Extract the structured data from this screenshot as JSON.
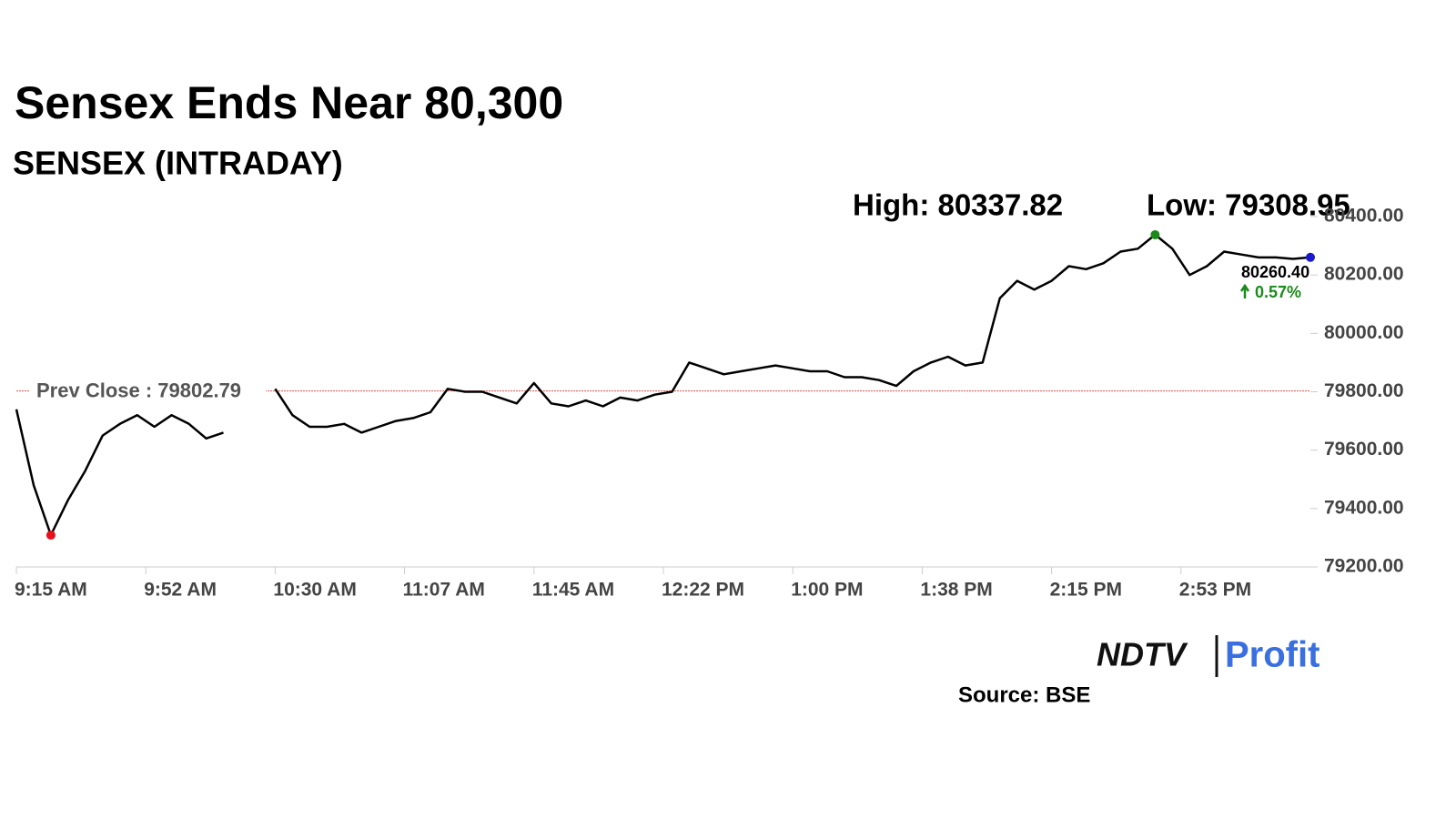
{
  "chart_data": {
    "type": "line",
    "title": "Sensex Ends Near 80,300",
    "subtitle": "SENSEX (INTRADAY)",
    "source": "Source: BSE",
    "logo": {
      "left": "NDTV",
      "right": "Profit"
    },
    "series": [
      {
        "name": "SENSEX",
        "color": "#000000",
        "values": [
          79740,
          79480,
          79308.95,
          79430,
          79530,
          79650,
          79690,
          79720,
          79680,
          79720,
          79690,
          79640,
          79660,
          null,
          null,
          79810,
          79720,
          79680,
          79680,
          79690,
          79660,
          79680,
          79700,
          79710,
          79730,
          79810,
          79800,
          79800,
          79780,
          79760,
          79830,
          79760,
          79750,
          79770,
          79750,
          79780,
          79770,
          79790,
          79800,
          79900,
          79880,
          79860,
          79870,
          79880,
          79890,
          79880,
          79870,
          79870,
          79850,
          79850,
          79840,
          79820,
          79870,
          79900,
          79920,
          79890,
          79900,
          80120,
          80180,
          80150,
          80180,
          80230,
          80220,
          80240,
          80280,
          80290,
          80337.82,
          80290,
          80200,
          80230,
          80280,
          80270,
          80260,
          80260,
          80255,
          80260.4
        ]
      }
    ],
    "xlim": [
      0,
      75
    ],
    "xticks": [
      {
        "value": 0,
        "label": "9:15 AM"
      },
      {
        "value": 7.5,
        "label": "9:52 AM"
      },
      {
        "value": 15,
        "label": "10:30 AM"
      },
      {
        "value": 22.5,
        "label": "11:07 AM"
      },
      {
        "value": 30,
        "label": "11:45 AM"
      },
      {
        "value": 37.5,
        "label": "12:22 PM"
      },
      {
        "value": 45,
        "label": "1:00 PM"
      },
      {
        "value": 52.5,
        "label": "1:38 PM"
      },
      {
        "value": 60,
        "label": "2:15 PM"
      },
      {
        "value": 67.5,
        "label": "2:53 PM"
      }
    ],
    "ylim": [
      79200,
      80400
    ],
    "yticks": [
      {
        "value": 79200,
        "label": "79200.00"
      },
      {
        "value": 79400,
        "label": "79400.00"
      },
      {
        "value": 79600,
        "label": "79600.00"
      },
      {
        "value": 79800,
        "label": "79800.00"
      },
      {
        "value": 80000,
        "label": "80000.00"
      },
      {
        "value": 80200,
        "label": "80200.00"
      },
      {
        "value": 80400,
        "label": "80400.00"
      }
    ],
    "high": {
      "value": 80337.82,
      "label": "High: 80337.82",
      "color": "#1a8a1a"
    },
    "low": {
      "value": 79308.95,
      "label": "Low: 79308.95",
      "color": "#e8101a"
    },
    "prev_close": {
      "value": 79802.79,
      "label": "Prev Close : 79802.79",
      "color": "#d9534f"
    },
    "last": {
      "value": 80260.4,
      "label": "80260.40",
      "color": "#1a1acc"
    },
    "change": "0.57%"
  }
}
